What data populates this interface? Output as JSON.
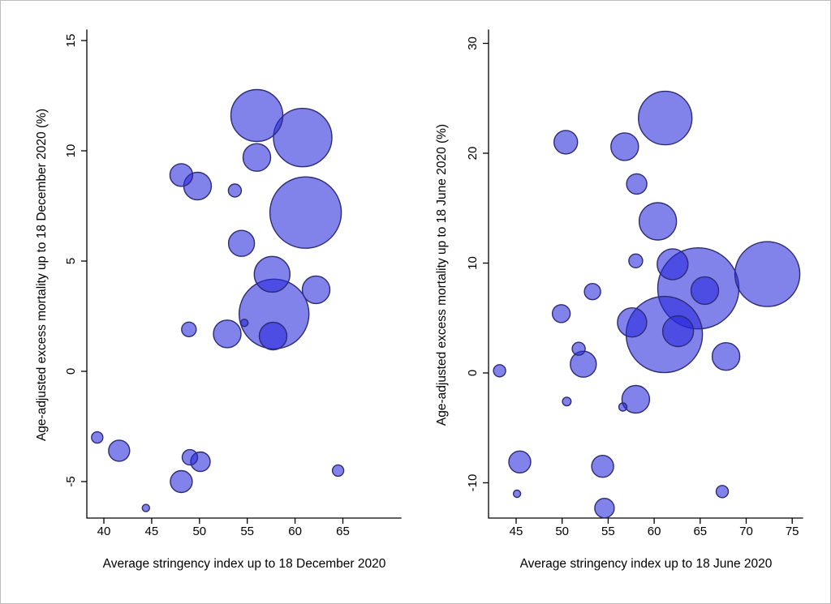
{
  "figure": {
    "background": "#ffffff",
    "border_color": "#bdbdbd"
  },
  "chart_data": [
    {
      "type": "scatter",
      "subtype": "bubble",
      "panel": "left",
      "xlabel": "Average stringency index up to 18 December 2020",
      "ylabel": "Age-adjusted excess mortality up to 18 December 2020 (%)",
      "x_ticks": [
        40,
        45,
        50,
        55,
        60,
        65
      ],
      "y_ticks": [
        -5,
        0,
        5,
        10,
        15
      ],
      "xlim": [
        38.2,
        71.1
      ],
      "ylim": [
        -6.65,
        15.5
      ],
      "grid": false,
      "legend": "none",
      "bubble_color": "#2727dd",
      "bubble_opacity": 0.58,
      "bubble_stroke": "#2c2c74",
      "points_format": [
        "x_stringency",
        "y_excess_mortality_pct",
        "bubble_radius_px"
      ],
      "points": [
        [
          56.0,
          11.6,
          32
        ],
        [
          60.8,
          10.6,
          36
        ],
        [
          56.0,
          9.7,
          17
        ],
        [
          48.1,
          8.9,
          14
        ],
        [
          49.8,
          8.4,
          17
        ],
        [
          53.7,
          8.2,
          8
        ],
        [
          61.1,
          7.2,
          44
        ],
        [
          54.4,
          5.8,
          16
        ],
        [
          57.6,
          4.4,
          22
        ],
        [
          62.2,
          3.7,
          17
        ],
        [
          57.8,
          2.6,
          43
        ],
        [
          52.9,
          1.7,
          17
        ],
        [
          54.7,
          2.2,
          4.5
        ],
        [
          48.9,
          1.9,
          9
        ],
        [
          57.7,
          1.6,
          17
        ],
        [
          39.3,
          -3.0,
          7
        ],
        [
          41.6,
          -3.6,
          13
        ],
        [
          49.0,
          -3.9,
          9.5
        ],
        [
          50.1,
          -4.1,
          12
        ],
        [
          48.1,
          -5.0,
          13.5
        ],
        [
          44.4,
          -6.2,
          4.5
        ],
        [
          64.5,
          -4.5,
          7
        ]
      ]
    },
    {
      "type": "scatter",
      "subtype": "bubble",
      "panel": "right",
      "xlabel": "Average stringency index up to 18 June 2020",
      "ylabel": "Age-adjusted excess mortality up to 18 June 2020 (%)",
      "x_ticks": [
        45,
        50,
        55,
        60,
        65,
        70,
        75
      ],
      "y_ticks": [
        -10,
        0,
        10,
        20,
        30
      ],
      "xlim": [
        42.0,
        76.1
      ],
      "ylim": [
        -13.2,
        31.2
      ],
      "grid": false,
      "legend": "none",
      "bubble_color": "#2727dd",
      "bubble_opacity": 0.58,
      "bubble_stroke": "#2c2c74",
      "points_format": [
        "x_stringency",
        "y_excess_mortality_pct",
        "bubble_radius_px"
      ],
      "points": [
        [
          43.2,
          0.2,
          7.5
        ],
        [
          50.4,
          21.0,
          14.5
        ],
        [
          56.8,
          20.6,
          17
        ],
        [
          61.2,
          23.2,
          33
        ],
        [
          58.1,
          17.2,
          12.5
        ],
        [
          60.4,
          13.8,
          23
        ],
        [
          58.0,
          10.2,
          8.5
        ],
        [
          62.0,
          9.9,
          19
        ],
        [
          64.8,
          7.7,
          50
        ],
        [
          65.5,
          7.5,
          17
        ],
        [
          72.3,
          9.0,
          40
        ],
        [
          61.1,
          3.5,
          47
        ],
        [
          57.6,
          4.6,
          18
        ],
        [
          62.6,
          3.8,
          19
        ],
        [
          67.8,
          1.5,
          17
        ],
        [
          53.3,
          7.4,
          10
        ],
        [
          49.9,
          5.4,
          11
        ],
        [
          51.8,
          2.2,
          8
        ],
        [
          52.3,
          0.8,
          16
        ],
        [
          50.5,
          -2.6,
          5.3
        ],
        [
          58.0,
          -2.4,
          17
        ],
        [
          56.6,
          -3.1,
          5
        ],
        [
          45.4,
          -8.1,
          13.5
        ],
        [
          54.4,
          -8.5,
          13.5
        ],
        [
          45.1,
          -11.0,
          4.5
        ],
        [
          67.4,
          -10.8,
          7.5
        ],
        [
          54.6,
          -12.3,
          12
        ]
      ]
    }
  ]
}
